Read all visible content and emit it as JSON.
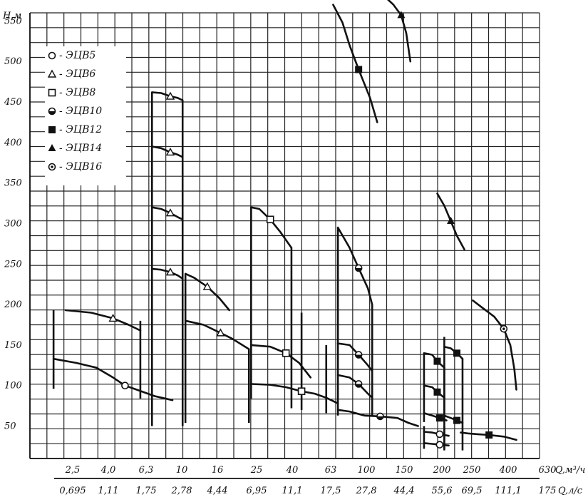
{
  "chart_data": {
    "type": "line",
    "title": "",
    "ylabel": "H,м",
    "xlabel_m3h": "Q,м³/ч",
    "xlabel_ls": "Q,л/с",
    "y_ticks": [
      "50",
      "100",
      "150",
      "200",
      "250",
      "300",
      "350",
      "400",
      "450",
      "500",
      "550"
    ],
    "x_ticks_m3h": [
      "2,5",
      "4,0",
      "6,3",
      "10",
      "16",
      "25",
      "40",
      "63",
      "100",
      "150",
      "200",
      "250",
      "400",
      "630"
    ],
    "x_ticks_ls": [
      "0,695",
      "1,11",
      "1,75",
      "2,78",
      "4,44",
      "6,95",
      "11,1",
      "17,5",
      "27,8",
      "44,4",
      "55,6",
      "69,5",
      "111,1",
      "175"
    ],
    "ylim": [
      10,
      560
    ],
    "legend": [
      {
        "marker": "open-circle",
        "label": "ЭЦВ5"
      },
      {
        "marker": "open-triangle",
        "label": "ЭЦВ6"
      },
      {
        "marker": "open-square",
        "label": "ЭЦВ8"
      },
      {
        "marker": "half-circle",
        "label": "ЭЦВ10"
      },
      {
        "marker": "filled-square",
        "label": "ЭЦВ12"
      },
      {
        "marker": "filled-triangle",
        "label": "ЭЦВ14"
      },
      {
        "marker": "dot-circle",
        "label": "ЭЦВ16"
      }
    ],
    "legend_placement": "top-left",
    "grid": true,
    "series": [
      {
        "marker": "open-circle",
        "points": [
          [
            2.0,
            133
          ],
          [
            2.6,
            128
          ],
          [
            3.3,
            122
          ],
          [
            4.0,
            110
          ],
          [
            4.6,
            100
          ],
          [
            5.4,
            94
          ],
          [
            6.5,
            87
          ],
          [
            8.0,
            82
          ]
        ]
      },
      {
        "marker": "open-triangle",
        "points": [
          [
            2.3,
            193
          ],
          [
            3.1,
            190
          ],
          [
            4.0,
            183
          ],
          [
            4.8,
            175
          ],
          [
            5.5,
            168
          ]
        ]
      },
      {
        "marker": "open-triangle",
        "points": [
          [
            6.3,
            462
          ],
          [
            7.0,
            461
          ],
          [
            7.8,
            457
          ],
          [
            8.5,
            455
          ],
          [
            9.0,
            452
          ]
        ]
      },
      {
        "marker": "open-triangle",
        "points": [
          [
            6.3,
            395
          ],
          [
            7.0,
            393
          ],
          [
            7.8,
            388
          ],
          [
            8.5,
            385
          ],
          [
            9.0,
            382
          ]
        ]
      },
      {
        "marker": "open-triangle",
        "points": [
          [
            6.3,
            320
          ],
          [
            7.0,
            318
          ],
          [
            7.8,
            313
          ],
          [
            8.5,
            308
          ],
          [
            9.0,
            305
          ]
        ]
      },
      {
        "marker": "open-triangle",
        "points": [
          [
            6.3,
            244
          ],
          [
            7.0,
            243
          ],
          [
            7.8,
            240
          ],
          [
            8.5,
            236
          ],
          [
            9.0,
            232
          ]
        ]
      },
      {
        "marker": "open-triangle",
        "points": [
          [
            9.3,
            238
          ],
          [
            10.3,
            233
          ],
          [
            12.0,
            222
          ],
          [
            13.8,
            208
          ],
          [
            15.5,
            193
          ]
        ]
      },
      {
        "marker": "open-triangle",
        "points": [
          [
            9.3,
            180
          ],
          [
            11.5,
            175
          ],
          [
            14.0,
            165
          ],
          [
            16.0,
            158
          ],
          [
            19.5,
            145
          ]
        ]
      },
      {
        "marker": "open-square",
        "points": [
          [
            20,
            320
          ],
          [
            22,
            318
          ],
          [
            25,
            305
          ],
          [
            28,
            290
          ],
          [
            32,
            270
          ]
        ]
      },
      {
        "marker": "open-square",
        "points": [
          [
            20,
            150
          ],
          [
            25,
            148
          ],
          [
            30,
            140
          ],
          [
            35,
            128
          ],
          [
            40,
            110
          ]
        ]
      },
      {
        "marker": "open-square",
        "points": [
          [
            20,
            102
          ],
          [
            25,
            101
          ],
          [
            30,
            98
          ],
          [
            36,
            93
          ],
          [
            42,
            90
          ],
          [
            48,
            85
          ],
          [
            55,
            78
          ]
        ]
      },
      {
        "marker": "half-circle",
        "points": [
          [
            55,
            295
          ],
          [
            63,
            270
          ],
          [
            70,
            245
          ],
          [
            78,
            220
          ],
          [
            82,
            200
          ]
        ]
      },
      {
        "marker": "half-circle",
        "points": [
          [
            55,
            152
          ],
          [
            63,
            150
          ],
          [
            70,
            138
          ],
          [
            78,
            125
          ],
          [
            82,
            118
          ]
        ]
      },
      {
        "marker": "half-circle",
        "points": [
          [
            55,
            113
          ],
          [
            63,
            110
          ],
          [
            70,
            102
          ],
          [
            78,
            90
          ],
          [
            82,
            85
          ]
        ]
      },
      {
        "marker": "half-circle",
        "points": [
          [
            55,
            70
          ],
          [
            63,
            68
          ],
          [
            75,
            63
          ],
          [
            90,
            62
          ],
          [
            110,
            60
          ],
          [
            125,
            54
          ],
          [
            140,
            50
          ]
        ]
      },
      {
        "marker": "filled-square",
        "points": [
          [
            52,
            570
          ],
          [
            58,
            548
          ],
          [
            63,
            520
          ],
          [
            70,
            490
          ],
          [
            80,
            455
          ],
          [
            87,
            425
          ]
        ]
      },
      {
        "marker": "filled-square",
        "points": [
          [
            150,
            140
          ],
          [
            165,
            138
          ],
          [
            175,
            130
          ],
          [
            190,
            122
          ]
        ]
      },
      {
        "marker": "filled-square",
        "points": [
          [
            150,
            100
          ],
          [
            165,
            98
          ],
          [
            175,
            92
          ],
          [
            190,
            85
          ]
        ]
      },
      {
        "marker": "filled-square",
        "points": [
          [
            150,
            66
          ],
          [
            165,
            63
          ],
          [
            180,
            60
          ],
          [
            195,
            57
          ]
        ]
      },
      {
        "marker": "filled-square",
        "points": [
          [
            190,
            148
          ],
          [
            205,
            146
          ],
          [
            220,
            140
          ],
          [
            235,
            133
          ]
        ]
      },
      {
        "marker": "filled-square",
        "points": [
          [
            190,
            63
          ],
          [
            205,
            60
          ],
          [
            220,
            57
          ],
          [
            235,
            54
          ]
        ]
      },
      {
        "marker": "filled-square",
        "points": [
          [
            230,
            42
          ],
          [
            250,
            41
          ],
          [
            280,
            40
          ],
          [
            320,
            39
          ],
          [
            380,
            37
          ],
          [
            440,
            33
          ]
        ]
      },
      {
        "marker": "filled-triangle",
        "points": [
          [
            95,
            580
          ],
          [
            105,
            570
          ],
          [
            115,
            557
          ],
          [
            122,
            535
          ],
          [
            128,
            500
          ]
        ]
      },
      {
        "marker": "filled-triangle",
        "points": [
          [
            175,
            337
          ],
          [
            190,
            322
          ],
          [
            205,
            303
          ],
          [
            220,
            285
          ],
          [
            240,
            268
          ]
        ]
      },
      {
        "marker": "dot-circle",
        "points": [
          [
            265,
            205
          ],
          [
            300,
            195
          ],
          [
            340,
            185
          ],
          [
            380,
            170
          ],
          [
            410,
            150
          ],
          [
            430,
            120
          ],
          [
            440,
            95
          ]
        ]
      },
      {
        "marker": "open-circle",
        "points": [
          [
            150,
            43
          ],
          [
            165,
            42
          ],
          [
            180,
            40
          ],
          [
            200,
            38
          ]
        ]
      },
      {
        "marker": "open-circle",
        "points": [
          [
            150,
            29
          ],
          [
            165,
            28
          ],
          [
            180,
            27
          ],
          [
            200,
            26
          ]
        ]
      }
    ]
  }
}
